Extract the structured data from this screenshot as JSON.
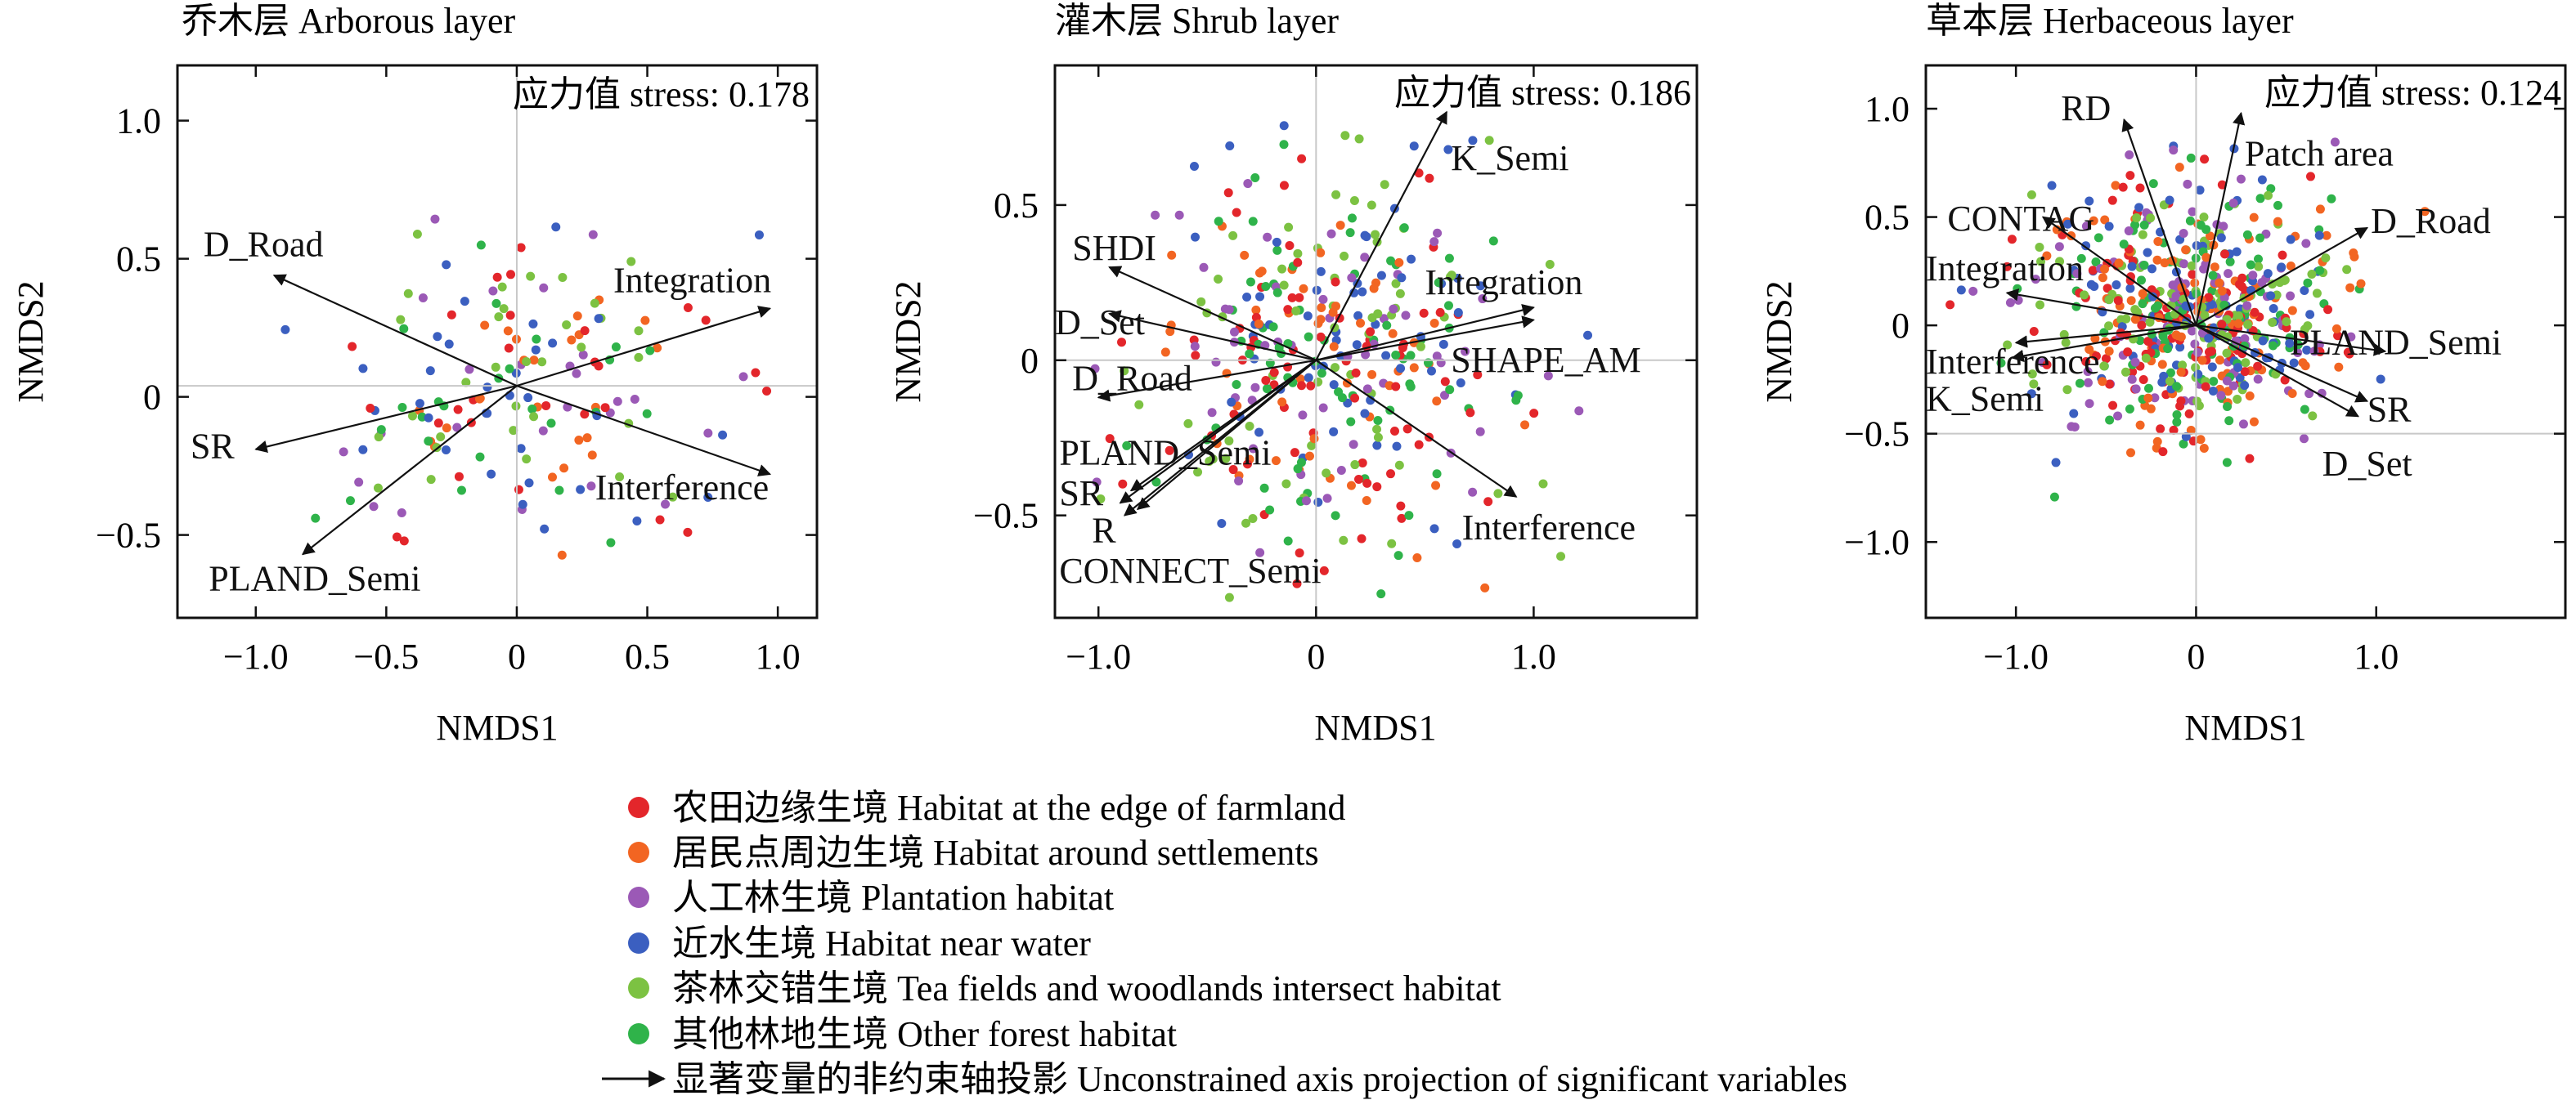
{
  "legend": {
    "groups": [
      {
        "label": "农田边缘生境 Habitat at the edge of farmland",
        "color": "#e3262b"
      },
      {
        "label": "居民点周边生境 Habitat around settlements",
        "color": "#f26522"
      },
      {
        "label": "人工林生境 Plantation habitat",
        "color": "#9b59b6"
      },
      {
        "label": "近水生境 Habitat near water",
        "color": "#3b5fc0"
      },
      {
        "label": "茶林交错生境 Tea fields and woodlands intersect habitat",
        "color": "#7cc242"
      },
      {
        "label": "其他林地生境 Other forest habitat",
        "color": "#2fb34a"
      }
    ],
    "arrow_label": "显著变量的非约束轴投影 Unconstrained axis projection of significant variables"
  },
  "chart_data": [
    {
      "type": "scatter",
      "title": "乔木层 Arborous layer",
      "stress_label": "应力值 stress: 0.178",
      "xlabel": "NMDS1",
      "ylabel": "NMDS2",
      "xlim": [
        -1.3,
        1.15
      ],
      "ylim": [
        -0.8,
        1.2
      ],
      "xticks": [
        -1.0,
        -0.5,
        0,
        0.5,
        1.0
      ],
      "yticks": [
        -0.5,
        0,
        0.5,
        1.0
      ],
      "xtick_labels": [
        "−1.0",
        "−0.5",
        "0",
        "0.5",
        "1.0"
      ],
      "ytick_labels": [
        "−0.5",
        "0",
        "0.5",
        "1.0"
      ],
      "ref_lines": {
        "x": 0,
        "y": 0.04
      },
      "arrow_origin": [
        0,
        0.04
      ],
      "vectors": [
        {
          "name": "D_Road",
          "x": -0.93,
          "y": 0.44,
          "label_at": [
            -1.2,
            0.55
          ]
        },
        {
          "name": "Integration",
          "x": 0.97,
          "y": 0.32,
          "label_at": [
            0.37,
            0.42
          ]
        },
        {
          "name": "SR",
          "x": -1.0,
          "y": -0.19,
          "label_at": [
            -1.25,
            -0.18
          ]
        },
        {
          "name": "Interference",
          "x": 0.97,
          "y": -0.28,
          "label_at": [
            0.3,
            -0.33
          ]
        },
        {
          "name": "PLAND_Semi",
          "x": -0.82,
          "y": -0.57,
          "label_at": [
            -1.18,
            -0.66
          ]
        }
      ],
      "n_points": 170,
      "cloud": {
        "cx": 0.05,
        "cy": 0.05,
        "sx": 0.38,
        "sy": 0.27
      },
      "seed": 11
    },
    {
      "type": "scatter",
      "title": "灌木层 Shrub layer",
      "stress_label": "应力值 stress: 0.186",
      "xlabel": "NMDS1",
      "ylabel": "NMDS2",
      "xlim": [
        -1.2,
        1.75
      ],
      "ylim": [
        -0.83,
        0.95
      ],
      "xticks": [
        -1.0,
        0,
        1.0
      ],
      "yticks": [
        -0.5,
        0,
        0.5
      ],
      "xtick_labels": [
        "−1.0",
        "0",
        "1.0"
      ],
      "ytick_labels": [
        "−0.5",
        "0",
        "0.5"
      ],
      "ref_lines": {
        "x": 0,
        "y": 0
      },
      "arrow_origin": [
        0,
        0
      ],
      "vectors": [
        {
          "name": "K_Semi",
          "x": 0.6,
          "y": 0.8,
          "label_at": [
            0.62,
            0.65
          ]
        },
        {
          "name": "SHDI",
          "x": -0.95,
          "y": 0.3,
          "label_at": [
            -1.12,
            0.36
          ]
        },
        {
          "name": "Integration",
          "x": 1.0,
          "y": 0.17,
          "label_at": [
            0.5,
            0.25
          ]
        },
        {
          "name": "D_Set",
          "x": -0.95,
          "y": 0.15,
          "label_at": [
            -1.2,
            0.12
          ]
        },
        {
          "name": "SHAPE_AM",
          "x": 1.0,
          "y": 0.13,
          "label_at": [
            0.62,
            0.0
          ]
        },
        {
          "name": "D_Road",
          "x": -1.0,
          "y": -0.12,
          "label_at": [
            -1.12,
            -0.06
          ]
        },
        {
          "name": "Interference",
          "x": 0.92,
          "y": -0.44,
          "label_at": [
            0.67,
            -0.54
          ]
        },
        {
          "name": "PLAND_Semi",
          "x": -0.85,
          "y": -0.42,
          "label_at": [
            -1.18,
            -0.3
          ]
        },
        {
          "name": "SR",
          "x": -0.9,
          "y": -0.46,
          "label_at": [
            -1.18,
            -0.43
          ]
        },
        {
          "name": "R",
          "x": -0.88,
          "y": -0.5,
          "label_at": [
            -1.03,
            -0.55
          ]
        },
        {
          "name": "CONNECT_Semi",
          "x": -0.82,
          "y": -0.48,
          "label_at": [
            -1.18,
            -0.68
          ]
        }
      ],
      "n_points": 400,
      "cloud": {
        "cx": 0.05,
        "cy": 0.0,
        "sx": 0.42,
        "sy": 0.3
      },
      "seed": 23
    },
    {
      "type": "scatter",
      "title": "草本层 Herbaceous layer",
      "stress_label": "应力值 stress: 0.124",
      "xlabel": "NMDS1",
      "ylabel": "NMDS2",
      "xlim": [
        -1.5,
        2.05
      ],
      "ylim": [
        -1.35,
        1.2
      ],
      "xticks": [
        -1.0,
        0,
        1.0
      ],
      "yticks": [
        -1.0,
        -0.5,
        0,
        0.5,
        1.0
      ],
      "xtick_labels": [
        "−1.0",
        "0",
        "1.0"
      ],
      "ytick_labels": [
        "−1.0",
        "−0.5",
        "0",
        "0.5",
        "1.0"
      ],
      "ref_lines": {
        "x": 0,
        "y": -0.5
      },
      "arrow_origin": [
        0,
        0
      ],
      "vectors": [
        {
          "name": "RD",
          "x": -0.4,
          "y": 0.95,
          "label_at": [
            -0.75,
            1.0
          ]
        },
        {
          "name": "Patch area",
          "x": 0.25,
          "y": 0.98,
          "label_at": [
            0.27,
            0.79
          ]
        },
        {
          "name": "CONTAG",
          "x": -0.85,
          "y": 0.5,
          "label_at": [
            -1.38,
            0.49
          ]
        },
        {
          "name": "D_Road",
          "x": 0.95,
          "y": 0.45,
          "label_at": [
            0.97,
            0.48
          ]
        },
        {
          "name": "Integration",
          "x": -1.05,
          "y": 0.15,
          "label_at": [
            -1.5,
            0.26
          ]
        },
        {
          "name": "Interference",
          "x": -1.0,
          "y": -0.08,
          "label_at": [
            -1.5,
            -0.17
          ]
        },
        {
          "name": "K_Semi",
          "x": -1.02,
          "y": -0.15,
          "label_at": [
            -1.5,
            -0.34
          ]
        },
        {
          "name": "PLAND_Semi",
          "x": 1.05,
          "y": -0.12,
          "label_at": [
            0.52,
            -0.08
          ]
        },
        {
          "name": "SR",
          "x": 0.95,
          "y": -0.35,
          "label_at": [
            0.95,
            -0.39
          ]
        },
        {
          "name": "D_Set",
          "x": 0.9,
          "y": -0.42,
          "label_at": [
            0.7,
            -0.64
          ]
        }
      ],
      "n_points": 650,
      "cloud": {
        "cx": 0.0,
        "cy": 0.05,
        "sx": 0.42,
        "sy": 0.28
      },
      "seed": 37
    }
  ]
}
